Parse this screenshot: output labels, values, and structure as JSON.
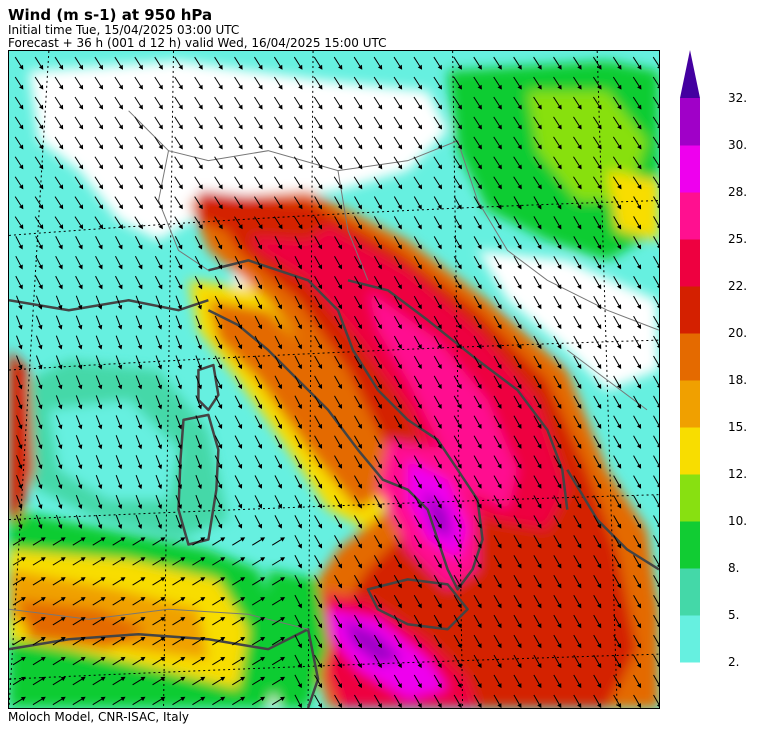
{
  "header": {
    "title": "Wind (m s-1) at 950 hPa",
    "initial_time": "Initial time  Tue, 15/04/2025  03:00 UTC",
    "forecast": "Forecast  +  36 h  (001 d 12 h)  valid Wed, 16/04/2025 15:00 UTC"
  },
  "footer": "Moloch Model, CNR-ISAC, Italy",
  "legend": {
    "labels": [
      "2.",
      "5.",
      "8.",
      "10.",
      "12.",
      "15.",
      "18.",
      "20.",
      "22.",
      "25.",
      "28.",
      "30.",
      "32."
    ],
    "colors": [
      "#66f0e0",
      "#44d8a8",
      "#11cc33",
      "#88e011",
      "#f8dd00",
      "#f0a000",
      "#e46a00",
      "#d42000",
      "#ee0040",
      "#ff1090",
      "#ee00ee",
      "#a000c8",
      "#4400a0"
    ]
  },
  "map": {
    "colors": {
      "calm": "#ffffff",
      "land_outline": "#444444",
      "border": "#777777",
      "arrow": "#000000"
    }
  }
}
